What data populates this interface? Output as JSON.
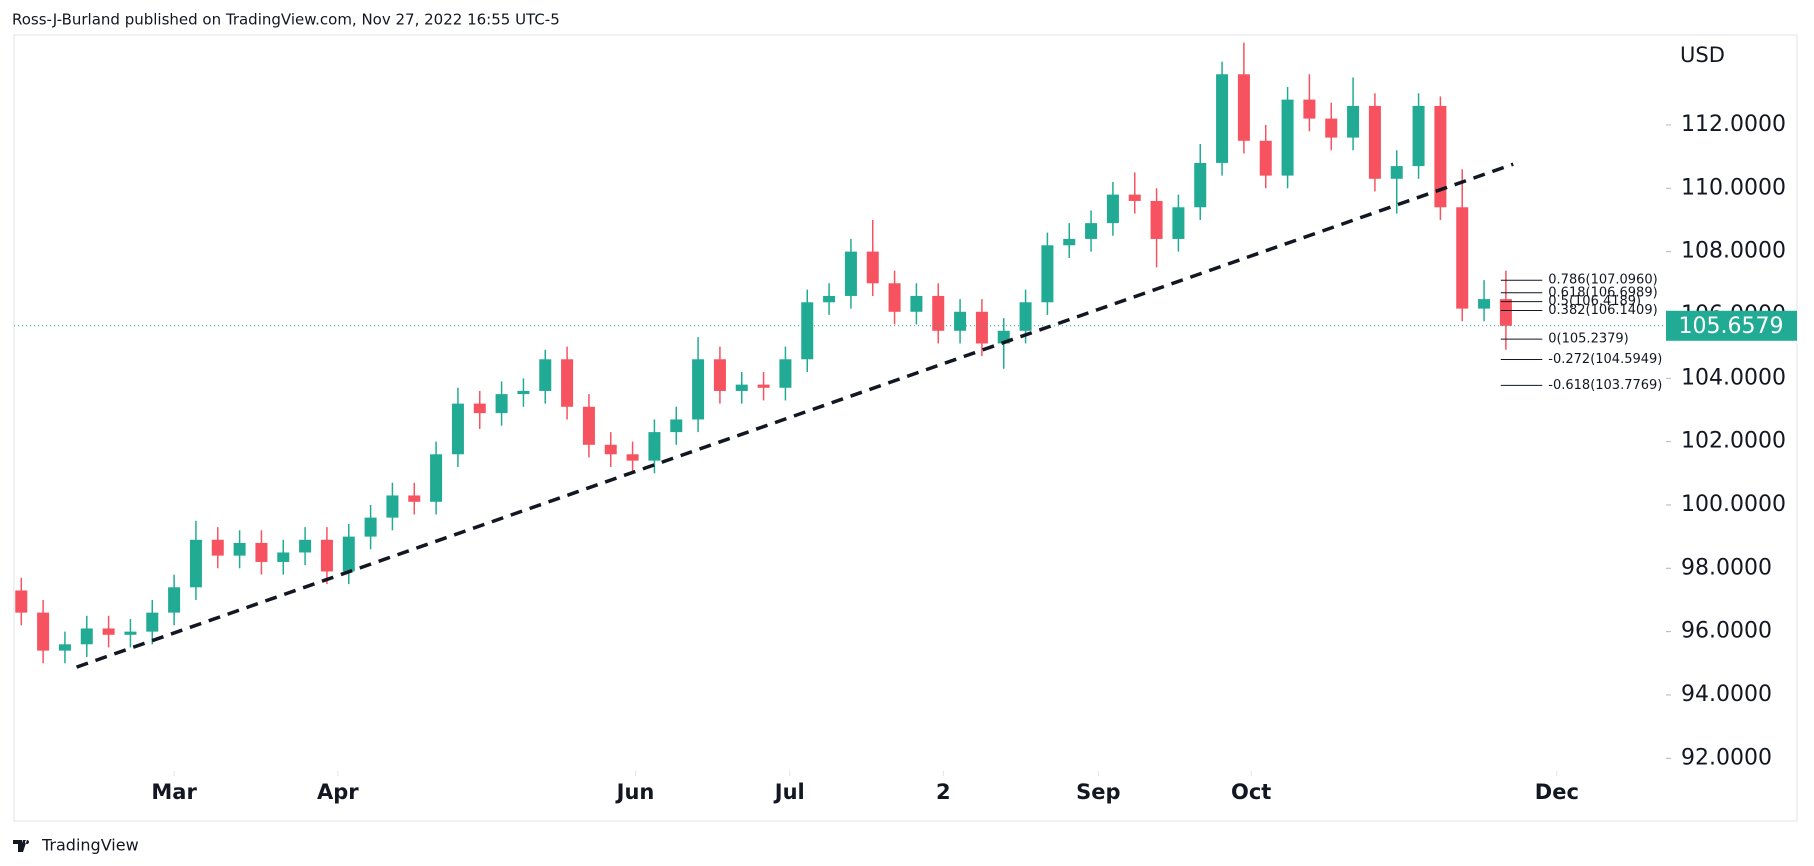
{
  "header": "Ross-J-Burland published on TradingView.com, Nov 27, 2022 16:55 UTC-5",
  "footer": "TradingView",
  "chart_data": {
    "type": "candlestick",
    "y_axis_label": "USD",
    "up_color": "#22ab94",
    "down_color": "#f7525f",
    "x": [
      0,
      3,
      6,
      9,
      12,
      15,
      18,
      21,
      24,
      27,
      30,
      33,
      36,
      39,
      42,
      45,
      48,
      51,
      54,
      57,
      60,
      63,
      66,
      69,
      72,
      75,
      78,
      81,
      84,
      87,
      90,
      93,
      96,
      99,
      102,
      105,
      108,
      111,
      114,
      117,
      120,
      123,
      126,
      129,
      132,
      135,
      138,
      141,
      144,
      147,
      150,
      153,
      156,
      159,
      162,
      165,
      168,
      171,
      174,
      177,
      180,
      183,
      186,
      189,
      192,
      195,
      198,
      201,
      204
    ],
    "open": [
      97.3,
      96.6,
      95.4,
      95.6,
      96.1,
      95.9,
      96.0,
      96.6,
      97.4,
      98.9,
      98.4,
      98.8,
      98.2,
      98.5,
      98.9,
      97.9,
      99.0,
      99.6,
      100.3,
      100.1,
      101.6,
      103.2,
      102.9,
      103.5,
      103.6,
      104.6,
      103.1,
      101.9,
      101.6,
      101.4,
      102.3,
      102.7,
      104.6,
      103.6,
      103.8,
      103.7,
      104.6,
      106.4,
      106.6,
      108.0,
      107.0,
      106.1,
      106.6,
      105.5,
      106.1,
      105.1,
      105.5,
      106.4,
      108.2,
      108.4,
      108.9,
      109.8,
      109.6,
      108.4,
      109.4,
      110.8,
      113.6,
      111.5,
      110.4,
      112.8,
      112.2,
      111.6,
      112.6,
      110.3,
      110.7,
      112.6,
      109.4,
      106.2,
      106.5
    ],
    "high": [
      97.7,
      97.0,
      96.0,
      96.5,
      96.5,
      96.4,
      97.0,
      97.8,
      99.5,
      99.3,
      99.2,
      99.2,
      98.9,
      99.3,
      99.3,
      99.4,
      100.0,
      100.7,
      100.7,
      102.0,
      103.7,
      103.6,
      103.9,
      104.0,
      104.9,
      105.0,
      103.5,
      102.3,
      102.0,
      102.7,
      103.1,
      105.3,
      105.0,
      104.2,
      104.2,
      105.0,
      106.8,
      107.0,
      108.4,
      109.0,
      107.4,
      107.0,
      107.0,
      106.5,
      106.5,
      105.9,
      106.8,
      108.6,
      108.9,
      109.3,
      110.2,
      110.5,
      110.0,
      109.8,
      111.4,
      114.0,
      114.6,
      112.0,
      113.2,
      113.6,
      112.7,
      113.5,
      113.0,
      111.2,
      113.0,
      112.9,
      110.6,
      107.1,
      107.4
    ],
    "low": [
      96.2,
      95.0,
      95.0,
      95.2,
      95.5,
      95.5,
      95.6,
      96.2,
      97.0,
      98.0,
      98.0,
      97.8,
      97.8,
      98.1,
      97.5,
      97.5,
      98.6,
      99.2,
      99.7,
      99.7,
      101.2,
      102.4,
      102.5,
      103.1,
      103.2,
      102.7,
      101.5,
      101.2,
      101.0,
      101.0,
      101.9,
      102.3,
      103.2,
      103.2,
      103.3,
      103.3,
      104.2,
      106.0,
      106.2,
      106.6,
      105.7,
      105.7,
      105.1,
      105.1,
      104.7,
      104.3,
      105.1,
      106.0,
      107.8,
      108.0,
      108.5,
      109.2,
      107.5,
      108.0,
      109.0,
      110.4,
      111.1,
      110.0,
      110.0,
      111.8,
      111.2,
      111.2,
      109.9,
      109.2,
      110.3,
      109.0,
      105.8,
      105.8,
      104.9
    ],
    "close": [
      96.6,
      95.4,
      95.6,
      96.1,
      95.9,
      96.0,
      96.6,
      97.4,
      98.9,
      98.4,
      98.8,
      98.2,
      98.5,
      98.9,
      97.9,
      99.0,
      99.6,
      100.3,
      100.1,
      101.6,
      103.2,
      102.9,
      103.5,
      103.6,
      104.6,
      103.1,
      101.9,
      101.6,
      101.4,
      102.3,
      102.7,
      104.6,
      103.6,
      103.8,
      103.7,
      104.6,
      106.4,
      106.6,
      108.0,
      107.0,
      106.1,
      106.6,
      105.5,
      106.1,
      105.1,
      105.5,
      106.4,
      108.2,
      108.4,
      108.9,
      109.8,
      109.6,
      108.4,
      109.4,
      110.8,
      113.6,
      111.5,
      110.4,
      112.8,
      112.2,
      111.6,
      112.6,
      110.3,
      110.7,
      112.6,
      109.4,
      106.2,
      106.5,
      105.6579
    ],
    "last_price": 105.6579,
    "trendline": {
      "x": [
        7.6,
        205
      ],
      "y": [
        94.88,
        110.76
      ]
    },
    "fib_levels": [
      {
        "value": 107.096,
        "label": "0.786(107.0960)"
      },
      {
        "value": 106.6989,
        "label": "0.618(106.6989)"
      },
      {
        "value": 106.4189,
        "label": "0.5(106.4189)"
      },
      {
        "value": 106.1409,
        "label": "0.382(106.1409)"
      },
      {
        "value": 105.2379,
        "label": "0(105.2379)"
      },
      {
        "value": 104.5949,
        "label": "-0.272(104.5949)"
      },
      {
        "value": 103.7769,
        "label": "-0.618(103.7769)"
      }
    ],
    "xlim": [
      -1,
      226
    ],
    "ylim": [
      90.02,
      114.84
    ],
    "xticks": [
      {
        "value": 21,
        "label": "Mar"
      },
      {
        "value": 43.5,
        "label": "Apr"
      },
      {
        "value": 84.4,
        "label": "Jun"
      },
      {
        "value": 105.6,
        "label": "Jul"
      },
      {
        "value": 126.7,
        "label": "2"
      },
      {
        "value": 148,
        "label": "Sep"
      },
      {
        "value": 169,
        "label": "Oct"
      },
      {
        "value": 211,
        "label": "Dec"
      }
    ],
    "yticks": [
      {
        "value": 92,
        "label": "92.0000"
      },
      {
        "value": 94,
        "label": "94.0000"
      },
      {
        "value": 96,
        "label": "96.0000"
      },
      {
        "value": 98,
        "label": "98.0000"
      },
      {
        "value": 100,
        "label": "100.0000"
      },
      {
        "value": 102,
        "label": "102.0000"
      },
      {
        "value": 104,
        "label": "104.0000"
      },
      {
        "value": 106,
        "label": "106.0000"
      },
      {
        "value": 108,
        "label": "108.0000"
      },
      {
        "value": 110,
        "label": "110.0000"
      },
      {
        "value": 112,
        "label": "112.0000"
      }
    ]
  }
}
